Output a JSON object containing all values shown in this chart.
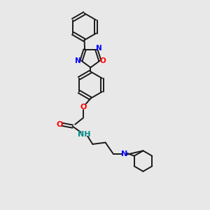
{
  "background_color": "#e8e8e8",
  "bond_color": "#1a1a1a",
  "N_color": "#0000ff",
  "O_color": "#ff0000",
  "NH_color": "#008b8b",
  "lw": 1.4,
  "dbo": 0.07,
  "figsize": [
    3.0,
    3.0
  ],
  "dpi": 100,
  "xlim": [
    0,
    10
  ],
  "ylim": [
    0,
    10
  ]
}
